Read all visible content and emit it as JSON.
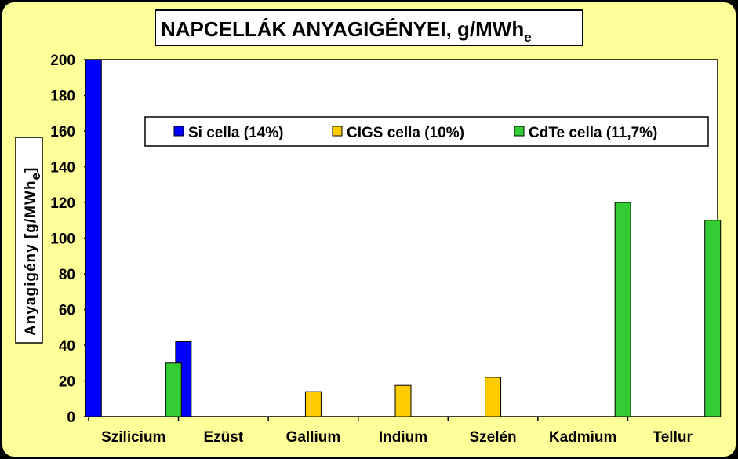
{
  "chart_data": {
    "type": "bar",
    "title": "NAPCELLÁK ANYAGIGÉNYEI, g/MWh",
    "title_subscript": "e",
    "ylabel": "Anyagigény  [g/MWh",
    "ylabel_subscript": "e",
    "ylabel_suffix": "]",
    "categories": [
      "Szilicium",
      "Ezüst",
      "Gallium",
      "Indium",
      "Szelén",
      "Kadmium",
      "Tellur"
    ],
    "yticks": [
      "0",
      "20",
      "40",
      "60",
      "80",
      "100",
      "120",
      "140",
      "160",
      "180",
      "200"
    ],
    "ylim": [
      0,
      200
    ],
    "grid": false,
    "legend_position": "top-center",
    "series": [
      {
        "name": "Si cella (14%)",
        "color": "#0000ff",
        "values": [
          200,
          42,
          null,
          null,
          null,
          null,
          null
        ]
      },
      {
        "name": "CIGS cella (10%)",
        "color": "#ffcc00",
        "values": [
          null,
          null,
          14,
          17.5,
          22,
          null,
          null
        ]
      },
      {
        "name": "CdTe cella (11,7%)",
        "color": "#33cc33",
        "values": [
          30,
          null,
          null,
          null,
          null,
          120,
          110
        ]
      }
    ]
  }
}
